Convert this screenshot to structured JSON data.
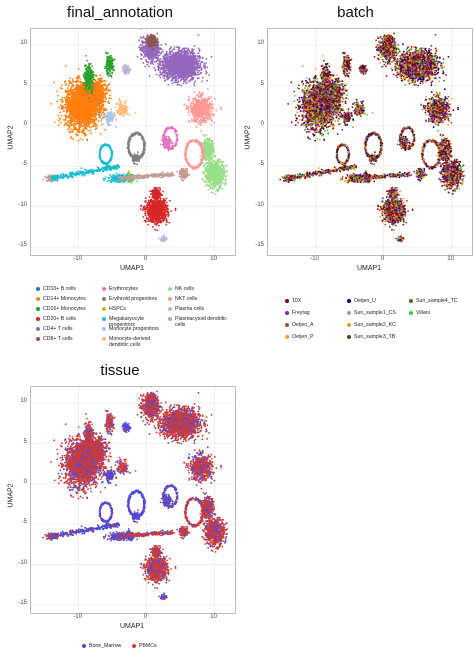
{
  "chart_data": [
    {
      "type": "scatter",
      "title": "final_annotation",
      "xlabel": "UMAP1",
      "ylabel": "UMAP2",
      "xlim": [
        -17,
        13
      ],
      "ylim": [
        -16,
        12
      ],
      "xticks": [
        "-10",
        "0",
        "10"
      ],
      "xtick_values": [
        -10,
        0,
        10
      ],
      "yticks": [
        "10",
        "5",
        "0",
        "-5",
        "-10",
        "-15"
      ],
      "ytick_values": [
        10,
        5,
        0,
        -5,
        -10,
        -15
      ],
      "grid": true,
      "legend_placement": "bottom",
      "series": [
        {
          "name": "CD10+ B cells",
          "color": "#1f77b4"
        },
        {
          "name": "CD14+ Monocytes",
          "color": "#ff7f0e"
        },
        {
          "name": "CD16+ Monocytes",
          "color": "#2ca02c"
        },
        {
          "name": "CD20+ B cells",
          "color": "#d62728"
        },
        {
          "name": "CD4+ T cells",
          "color": "#9467bd"
        },
        {
          "name": "CD8+ T cells",
          "color": "#8c564b"
        },
        {
          "name": "Erythrocytes",
          "color": "#e377c2"
        },
        {
          "name": "Erythroid progenitors",
          "color": "#7f7f7f"
        },
        {
          "name": "HSPCs",
          "color": "#bcbd22"
        },
        {
          "name": "Megakaryocyte progenitors",
          "color": "#17becf"
        },
        {
          "name": "Monocyte progenitors",
          "color": "#aec7e8"
        },
        {
          "name": "Monocyte-derived dendritic cells",
          "color": "#ffbb78"
        },
        {
          "name": "NK cells",
          "color": "#98df8a"
        },
        {
          "name": "NKT cells",
          "color": "#ff9896"
        },
        {
          "name": "Plasma cells",
          "color": "#c5b0d5"
        },
        {
          "name": "Plasmacytoid dendritic cells",
          "color": "#c49c94"
        }
      ]
    },
    {
      "type": "scatter",
      "title": "batch",
      "xlabel": "UMAP1",
      "ylabel": "UMAP2",
      "xlim": [
        -17,
        13
      ],
      "ylim": [
        -16,
        12
      ],
      "xticks": [
        "-10",
        "0",
        "10"
      ],
      "xtick_values": [
        -10,
        0,
        10
      ],
      "yticks": [
        "10",
        "5",
        "0",
        "-5",
        "-10",
        "-15"
      ],
      "ytick_values": [
        10,
        5,
        0,
        -5,
        -10,
        -15
      ],
      "grid": true,
      "legend_placement": "bottom",
      "series": [
        {
          "name": "10X",
          "color": "#8b0000"
        },
        {
          "name": "Freytag",
          "color": "#7b2fbe"
        },
        {
          "name": "Oetjen_A",
          "color": "#a0522d"
        },
        {
          "name": "Oetjen_P",
          "color": "#f0a020"
        },
        {
          "name": "Oetjen_U",
          "color": "#00008b"
        },
        {
          "name": "Sun_sample1_CS",
          "color": "#9e9e9e"
        },
        {
          "name": "Sun_sample2_KC",
          "color": "#daa520"
        },
        {
          "name": "Sun_sample3_TB",
          "color": "#6b3a1e"
        },
        {
          "name": "Sun_sample4_TC",
          "color": "#556b2f"
        },
        {
          "name": "Villani",
          "color": "#32cd32"
        }
      ]
    },
    {
      "type": "scatter",
      "title": "tissue",
      "xlabel": "UMAP1",
      "ylabel": "UMAP2",
      "xlim": [
        -17,
        13
      ],
      "ylim": [
        -16,
        12
      ],
      "xticks": [
        "-10",
        "0",
        "10"
      ],
      "xtick_values": [
        -10,
        0,
        10
      ],
      "yticks": [
        "10",
        "5",
        "0",
        "-5",
        "-10",
        "-15"
      ],
      "ytick_values": [
        10,
        5,
        0,
        -5,
        -10,
        -15
      ],
      "grid": true,
      "legend_placement": "bottom",
      "series": [
        {
          "name": "Bone_Marrow",
          "color": "#4b4be0"
        },
        {
          "name": "PBMCs",
          "color": "#d43a2f"
        }
      ]
    }
  ]
}
